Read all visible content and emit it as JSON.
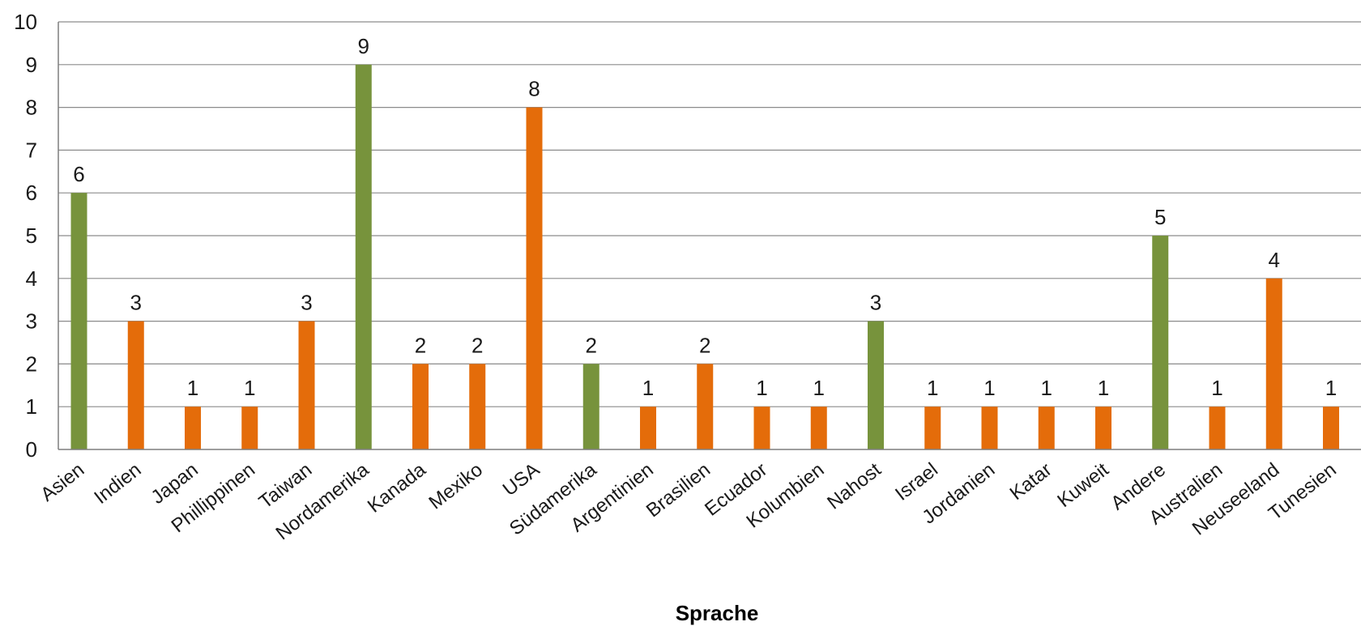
{
  "chart_data": {
    "type": "bar",
    "xlabel": "Sprache",
    "ylabel": "",
    "ylim": [
      0,
      10
    ],
    "yticks": [
      0,
      1,
      2,
      3,
      4,
      5,
      6,
      7,
      8,
      9,
      10
    ],
    "grid": true,
    "legend": "none",
    "colors": {
      "region": "#77933C",
      "country": "#E46C0A",
      "grid": "#8c8c8c",
      "axis": "#7f7f7f"
    },
    "bars": [
      {
        "category": "Asien",
        "value": 6,
        "kind": "region"
      },
      {
        "category": "Indien",
        "value": 3,
        "kind": "country"
      },
      {
        "category": "Japan",
        "value": 1,
        "kind": "country"
      },
      {
        "category": "Phillippinen",
        "value": 1,
        "kind": "country"
      },
      {
        "category": "Taiwan",
        "value": 3,
        "kind": "country"
      },
      {
        "category": "Nordamerika",
        "value": 9,
        "kind": "region"
      },
      {
        "category": "Kanada",
        "value": 2,
        "kind": "country"
      },
      {
        "category": "Mexiko",
        "value": 2,
        "kind": "country"
      },
      {
        "category": "USA",
        "value": 8,
        "kind": "country"
      },
      {
        "category": "Südamerika",
        "value": 2,
        "kind": "region"
      },
      {
        "category": "Argentinien",
        "value": 1,
        "kind": "country"
      },
      {
        "category": "Brasilien",
        "value": 2,
        "kind": "country"
      },
      {
        "category": "Ecuador",
        "value": 1,
        "kind": "country"
      },
      {
        "category": "Kolumbien",
        "value": 1,
        "kind": "country"
      },
      {
        "category": "Nahost",
        "value": 3,
        "kind": "region"
      },
      {
        "category": "Israel",
        "value": 1,
        "kind": "country"
      },
      {
        "category": "Jordanien",
        "value": 1,
        "kind": "country"
      },
      {
        "category": "Katar",
        "value": 1,
        "kind": "country"
      },
      {
        "category": "Kuweit",
        "value": 1,
        "kind": "country"
      },
      {
        "category": "Andere",
        "value": 5,
        "kind": "region"
      },
      {
        "category": "Australien",
        "value": 1,
        "kind": "country"
      },
      {
        "category": "Neuseeland",
        "value": 4,
        "kind": "country"
      },
      {
        "category": "Tunesien",
        "value": 1,
        "kind": "country"
      }
    ]
  }
}
